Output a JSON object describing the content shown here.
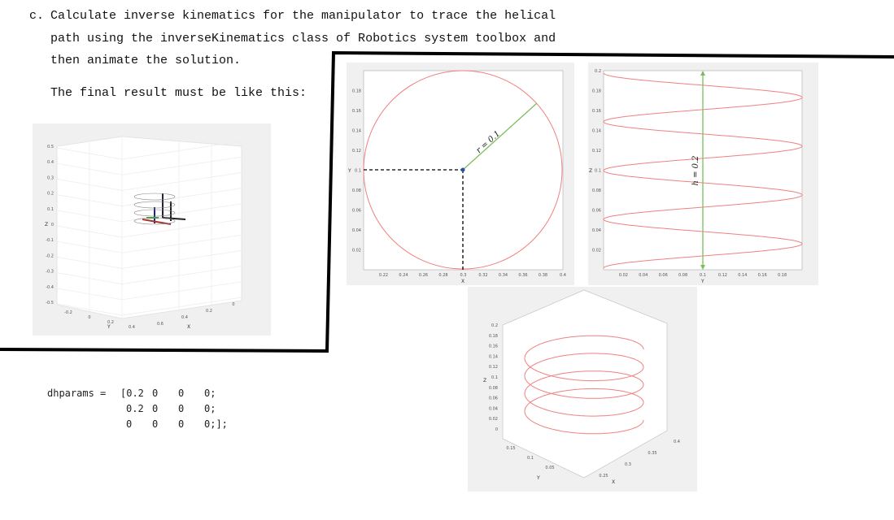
{
  "instruction": {
    "item": "c.",
    "lines": [
      "Calculate inverse kinematics for the manipulator to trace the helical",
      "path using the inverseKinematics class of Robotics system toolbox and",
      "then animate the solution."
    ]
  },
  "note": "The final result must be like this:",
  "code": {
    "label": "dhparams =",
    "rows": [
      [
        "[0.2",
        "0",
        "0",
        "0;"
      ],
      [
        "0.2",
        "0",
        "0",
        "0;"
      ],
      [
        "0",
        "0",
        "0",
        "0;];"
      ]
    ]
  },
  "figures": {
    "robot_3d": {
      "zlabel": "Z",
      "ylabel": "Y",
      "xlabel": "X",
      "zticks": [
        "0.5",
        "0.4",
        "0.3",
        "0.2",
        "0.1",
        "0",
        "-0.1",
        "-0.2",
        "-0.3",
        "-0.4",
        "-0.5"
      ],
      "yticks": [
        "-0.2",
        "0",
        "0.2",
        "0.4"
      ],
      "xticks": [
        "0.6",
        "0.4",
        "0.2",
        "0"
      ]
    },
    "top_view": {
      "annotation": "r = 0.1",
      "xlabel": "X",
      "ylabel": "Y",
      "xticks": [
        "0.22",
        "0.24",
        "0.26",
        "0.28",
        "0.3",
        "0.32",
        "0.34",
        "0.36",
        "0.38",
        "0.4"
      ],
      "yticks": [
        "0.02",
        "0.04",
        "0.06",
        "0.08",
        "0.1",
        "0.12",
        "0.14",
        "0.16",
        "0.18"
      ]
    },
    "side_view": {
      "annotation": "h = 0.2",
      "xlabel": "Y",
      "ylabel": "Z",
      "xticks": [
        "0.02",
        "0.04",
        "0.06",
        "0.08",
        "0.1",
        "0.12",
        "0.14",
        "0.16",
        "0.18"
      ],
      "yticks": [
        "0.02",
        "0.04",
        "0.06",
        "0.08",
        "0.1",
        "0.12",
        "0.14",
        "0.16",
        "0.18",
        "0.2"
      ]
    },
    "helix_3d": {
      "zlabel": "Z",
      "ylabel": "Y",
      "xlabel": "X",
      "zticks": [
        "0",
        "0.02",
        "0.04",
        "0.06",
        "0.08",
        "0.1",
        "0.12",
        "0.14",
        "0.16",
        "0.18",
        "0.2"
      ],
      "yticks": [
        "0.15",
        "0.1",
        "0.05"
      ],
      "xticks": [
        "0.25",
        "0.3",
        "0.35",
        "0.4"
      ]
    }
  }
}
